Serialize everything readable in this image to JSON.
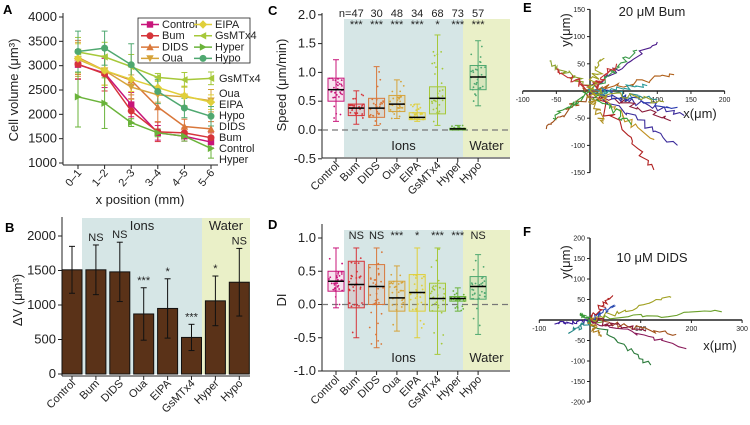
{
  "panel_labels": [
    "A",
    "B",
    "C",
    "D",
    "E",
    "F"
  ],
  "chart_data": [
    {
      "id": "A",
      "type": "line",
      "xlabel": "x position (mm)",
      "ylabel": "Cell volume (μm³)",
      "categories": [
        "0–1",
        "1–2",
        "2–3",
        "3–4",
        "4–5",
        "5–6"
      ],
      "ylim": [
        1000,
        4000
      ],
      "yticks": [
        1000,
        1500,
        2000,
        2500,
        3000,
        3500,
        4000
      ],
      "legend": "top-right",
      "series": [
        {
          "name": "Control",
          "color": "#c8157a",
          "marker": "square",
          "values": [
            3020,
            2850,
            2200,
            1620,
            1550,
            1430
          ],
          "err": [
            300,
            300,
            250,
            150,
            100,
            120
          ]
        },
        {
          "name": "Bum",
          "color": "#d6343a",
          "marker": "circle",
          "values": [
            3030,
            2830,
            2070,
            1640,
            1620,
            1520
          ],
          "err": [
            300,
            350,
            250,
            200,
            100,
            100
          ]
        },
        {
          "name": "DIDS",
          "color": "#d9773a",
          "marker": "triangle-up",
          "values": [
            3170,
            2900,
            2700,
            2150,
            1750,
            1700
          ],
          "err": [
            350,
            300,
            300,
            300,
            150,
            150
          ]
        },
        {
          "name": "Oua",
          "color": "#d6a33a",
          "marker": "triangle-down",
          "values": [
            3130,
            2900,
            2560,
            2400,
            2360,
            2280
          ],
          "err": [
            350,
            300,
            250,
            150,
            200,
            230
          ]
        },
        {
          "name": "EIPA",
          "color": "#e0cf3a",
          "marker": "diamond",
          "values": [
            3150,
            2900,
            2720,
            2550,
            2380,
            2250
          ],
          "err": [
            300,
            300,
            250,
            150,
            200,
            150
          ]
        },
        {
          "name": "GsMTx4",
          "color": "#a6c83a",
          "marker": "triangle-left",
          "values": [
            3280,
            3180,
            2980,
            2760,
            2710,
            2740
          ],
          "err": [
            300,
            300,
            250,
            80,
            150,
            130
          ]
        },
        {
          "name": "Hyper",
          "color": "#6ab33a",
          "marker": "triangle-right",
          "values": [
            2360,
            2230,
            1830,
            1620,
            1550,
            1300
          ],
          "err": [
            620,
            520,
            80,
            80,
            100,
            200
          ]
        },
        {
          "name": "Hypo",
          "color": "#4fa870",
          "marker": "hexagon",
          "values": [
            3290,
            3360,
            3020,
            2470,
            2130,
            1960
          ],
          "err": [
            420,
            350,
            430,
            250,
            200,
            200
          ]
        }
      ]
    },
    {
      "id": "B",
      "type": "bar",
      "ylabel": "ΔV (μm³)",
      "categories": [
        "Control",
        "Bum",
        "DIDS",
        "Oua",
        "EIPA",
        "GsMTx4",
        "Hyper",
        "Hypo"
      ],
      "values": [
        1510,
        1510,
        1480,
        870,
        950,
        530,
        1060,
        1330
      ],
      "err": [
        340,
        360,
        430,
        380,
        430,
        190,
        360,
        490
      ],
      "significance": [
        "",
        "NS",
        "NS",
        "***",
        "*",
        "***",
        "*",
        "NS"
      ],
      "ylim": [
        0,
        2200
      ],
      "yticks": [
        0,
        500,
        1000,
        1500,
        2000
      ],
      "groups": [
        {
          "label": "Ions",
          "color": "#d6e6e6"
        },
        {
          "label": "Water",
          "color": "#eaf0c8"
        }
      ],
      "bar_color": "#5a3218"
    },
    {
      "id": "C",
      "type": "box",
      "ylabel": "Speed (μm/min)",
      "categories": [
        "Control",
        "Bum",
        "DIDS",
        "Oua",
        "EIPA",
        "GsMTx4",
        "Hyper",
        "Hypo"
      ],
      "n_labels": [
        "",
        "n=47",
        "30",
        "48",
        "34",
        "68",
        "73",
        "57"
      ],
      "significance": [
        "",
        "***",
        "***",
        "***",
        "***",
        "*",
        "***",
        "***"
      ],
      "ylim": [
        -0.5,
        2.0
      ],
      "yticks": [
        -0.5,
        0.0,
        0.5,
        1.0,
        1.5,
        2.0
      ],
      "groups": [
        {
          "label": "Ions",
          "color": "#d6e6e6"
        },
        {
          "label": "Water",
          "color": "#eaf0c8"
        }
      ],
      "colors": [
        "#c8157a",
        "#d6343a",
        "#d9773a",
        "#d6a33a",
        "#e0cf3a",
        "#a6c83a",
        "#6ab33a",
        "#4fa870"
      ],
      "boxes": [
        {
          "min": 0.15,
          "q1": 0.5,
          "median": 0.7,
          "q3": 0.9,
          "max": 1.22
        },
        {
          "min": 0.1,
          "q1": 0.25,
          "median": 0.38,
          "q3": 0.45,
          "max": 0.68
        },
        {
          "min": 0.08,
          "q1": 0.22,
          "median": 0.38,
          "q3": 0.55,
          "max": 1.1
        },
        {
          "min": 0.2,
          "q1": 0.32,
          "median": 0.45,
          "q3": 0.6,
          "max": 0.87
        },
        {
          "min": 0.15,
          "q1": 0.18,
          "median": 0.22,
          "q3": 0.3,
          "max": 0.45
        },
        {
          "min": 0.08,
          "q1": 0.28,
          "median": 0.55,
          "q3": 0.75,
          "max": 1.65
        },
        {
          "min": 0.0,
          "q1": 0.0,
          "median": 0.02,
          "q3": 0.03,
          "max": 0.08
        },
        {
          "min": 0.42,
          "q1": 0.7,
          "median": 0.92,
          "q3": 1.12,
          "max": 1.55
        }
      ]
    },
    {
      "id": "D",
      "type": "box",
      "ylabel": "DI",
      "categories": [
        "Control",
        "Bum",
        "DIDS",
        "Oua",
        "EIPA",
        "GsMTx4",
        "Hyper",
        "Hypo"
      ],
      "significance": [
        "",
        "NS",
        "NS",
        "***",
        "*",
        "***",
        "***",
        "NS"
      ],
      "ylim": [
        -1.0,
        1.1
      ],
      "yticks": [
        -1.0,
        -0.5,
        0.0,
        0.5,
        1.0
      ],
      "groups": [
        {
          "label": "Ions",
          "color": "#d6e6e6"
        },
        {
          "label": "Water",
          "color": "#eaf0c8"
        }
      ],
      "colors": [
        "#c8157a",
        "#d6343a",
        "#d9773a",
        "#d6a33a",
        "#e0cf3a",
        "#a6c83a",
        "#6ab33a",
        "#4fa870"
      ],
      "boxes": [
        {
          "min": -0.05,
          "q1": 0.2,
          "median": 0.35,
          "q3": 0.5,
          "max": 0.85
        },
        {
          "min": -0.5,
          "q1": -0.05,
          "median": 0.3,
          "q3": 0.65,
          "max": 0.85
        },
        {
          "min": -0.65,
          "q1": 0.0,
          "median": 0.27,
          "q3": 0.6,
          "max": 0.85
        },
        {
          "min": -0.4,
          "q1": -0.1,
          "median": 0.1,
          "q3": 0.35,
          "max": 0.58
        },
        {
          "min": -0.5,
          "q1": -0.1,
          "median": 0.18,
          "q3": 0.45,
          "max": 0.85
        },
        {
          "min": -0.75,
          "q1": -0.1,
          "median": 0.09,
          "q3": 0.32,
          "max": 0.85
        },
        {
          "min": -0.1,
          "q1": 0.05,
          "median": 0.09,
          "q3": 0.12,
          "max": 0.25
        },
        {
          "min": -0.45,
          "q1": 0.08,
          "median": 0.27,
          "q3": 0.42,
          "max": 0.75
        }
      ]
    },
    {
      "id": "E",
      "type": "trajectory",
      "title": "20 μM Bum",
      "xlabel": "x(μm)",
      "ylabel": "y(μm)",
      "xlim": [
        -100,
        200
      ],
      "ylim": [
        -150,
        150
      ],
      "xticks": [
        -100,
        -50,
        50,
        100,
        150,
        200
      ],
      "yticks": [
        -150,
        -100,
        -50,
        50,
        100,
        150
      ],
      "track_endpoints": [
        {
          "x": 100,
          "y": 90,
          "color": "#4b1a8a"
        },
        {
          "x": 70,
          "y": 75,
          "color": "#3a9a4a"
        },
        {
          "x": -60,
          "y": 55,
          "color": "#8aa02a"
        },
        {
          "x": 140,
          "y": -45,
          "color": "#3a2a9a"
        },
        {
          "x": 130,
          "y": -100,
          "color": "#3a2a9a"
        },
        {
          "x": 95,
          "y": -145,
          "color": "#b02020"
        },
        {
          "x": 120,
          "y": -55,
          "color": "#8a1a3a"
        },
        {
          "x": 125,
          "y": 30,
          "color": "#b0601a"
        },
        {
          "x": -65,
          "y": -70,
          "color": "#a0501a"
        },
        {
          "x": -55,
          "y": -50,
          "color": "#3a9a3a"
        },
        {
          "x": 95,
          "y": -90,
          "color": "#c09020"
        },
        {
          "x": 100,
          "y": -15,
          "color": "#2a8a8a"
        },
        {
          "x": 130,
          "y": -30,
          "color": "#2a3ab0"
        },
        {
          "x": 60,
          "y": -60,
          "color": "#3aa03a"
        },
        {
          "x": 20,
          "y": -60,
          "color": "#b09020"
        },
        {
          "x": -50,
          "y": 40,
          "color": "#c03030"
        },
        {
          "x": 40,
          "y": 50,
          "color": "#c03030"
        },
        {
          "x": 85,
          "y": 10,
          "color": "#2a9a9a"
        },
        {
          "x": 110,
          "y": -20,
          "color": "#9aa02a"
        },
        {
          "x": 20,
          "y": 60,
          "color": "#a0a020"
        }
      ]
    },
    {
      "id": "F",
      "type": "trajectory",
      "title": "10 μM DIDS",
      "xlabel": "x(μm)",
      "ylabel": "y(μm)",
      "xlim": [
        -100,
        300
      ],
      "ylim": [
        -200,
        200
      ],
      "xticks": [
        -100,
        100,
        200,
        300
      ],
      "yticks": [
        -200,
        -150,
        -100,
        -50,
        50,
        100,
        150,
        200
      ],
      "track_endpoints": [
        {
          "x": 160,
          "y": 55,
          "color": "#a0a020"
        },
        {
          "x": 260,
          "y": 20,
          "color": "#6aa02a"
        },
        {
          "x": 190,
          "y": -70,
          "color": "#8a1a5a"
        },
        {
          "x": 170,
          "y": -35,
          "color": "#a0501a"
        },
        {
          "x": 120,
          "y": -110,
          "color": "#2a7a3a"
        },
        {
          "x": 50,
          "y": 35,
          "color": "#2a4ab0"
        },
        {
          "x": 45,
          "y": 60,
          "color": "#b02020"
        },
        {
          "x": -70,
          "y": -10,
          "color": "#3a1a9a"
        },
        {
          "x": -40,
          "y": -30,
          "color": "#2a8a8a"
        },
        {
          "x": 20,
          "y": -40,
          "color": "#b08020"
        },
        {
          "x": 110,
          "y": -25,
          "color": "#8a1a3a"
        },
        {
          "x": -20,
          "y": 15,
          "color": "#3a9a3a"
        }
      ]
    }
  ]
}
